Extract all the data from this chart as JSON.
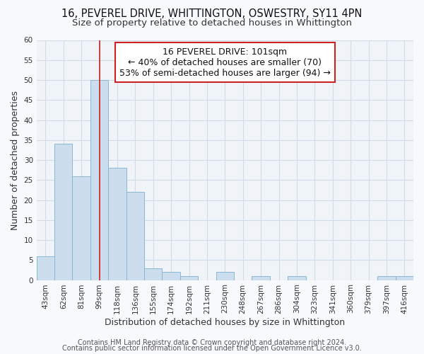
{
  "title": "16, PEVEREL DRIVE, WHITTINGTON, OSWESTRY, SY11 4PN",
  "subtitle": "Size of property relative to detached houses in Whittington",
  "xlabel": "Distribution of detached houses by size in Whittington",
  "ylabel": "Number of detached properties",
  "bar_labels": [
    "43sqm",
    "62sqm",
    "81sqm",
    "99sqm",
    "118sqm",
    "136sqm",
    "155sqm",
    "174sqm",
    "192sqm",
    "211sqm",
    "230sqm",
    "248sqm",
    "267sqm",
    "286sqm",
    "304sqm",
    "323sqm",
    "341sqm",
    "360sqm",
    "379sqm",
    "397sqm",
    "416sqm"
  ],
  "bar_heights": [
    6,
    34,
    26,
    50,
    28,
    22,
    3,
    2,
    1,
    0,
    2,
    0,
    1,
    0,
    1,
    0,
    0,
    0,
    0,
    1,
    1
  ],
  "bar_color": "#ccdeed",
  "bar_edge_color": "#89b8d4",
  "red_line_index": 3,
  "ylim": [
    0,
    60
  ],
  "yticks": [
    0,
    5,
    10,
    15,
    20,
    25,
    30,
    35,
    40,
    45,
    50,
    55,
    60
  ],
  "grid_color": "#d0dce8",
  "annotation_box_text_line1": "16 PEVEREL DRIVE: 101sqm",
  "annotation_box_text_line2": "← 40% of detached houses are smaller (70)",
  "annotation_box_text_line3": "53% of semi-detached houses are larger (94) →",
  "annotation_box_facecolor": "#ffffff",
  "annotation_box_edgecolor": "#cc2222",
  "footer_line1": "Contains HM Land Registry data © Crown copyright and database right 2024.",
  "footer_line2": "Contains public sector information licensed under the Open Government Licence v3.0.",
  "bg_color": "#f7f9fc",
  "plot_bg_color": "#f0f4f8",
  "title_fontsize": 10.5,
  "subtitle_fontsize": 9.5,
  "annotation_fontsize": 9,
  "axis_label_fontsize": 9,
  "tick_fontsize": 7.5,
  "footer_fontsize": 7
}
